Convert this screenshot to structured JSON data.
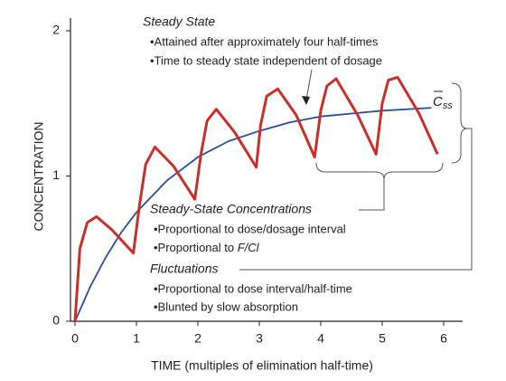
{
  "chart_data": {
    "type": "line",
    "x_label": "TIME (multiples of elimination half-time)",
    "y_label": "CONCENTRATION",
    "xlim": [
      0,
      6.3
    ],
    "ylim": [
      0,
      2.08
    ],
    "xticks": [
      0,
      1,
      2,
      3,
      4,
      5,
      6
    ],
    "yticks": [
      0,
      1,
      2
    ],
    "series": [
      {
        "color": "#c8302a",
        "x": [
          0,
          0.08,
          0.2,
          0.35,
          0.6,
          0.95,
          1.05,
          1.15,
          1.3,
          1.6,
          1.95,
          2.05,
          2.15,
          2.3,
          2.6,
          2.95,
          3.02,
          3.12,
          3.3,
          3.6,
          3.9,
          4.0,
          4.1,
          4.25,
          4.6,
          4.9,
          5.0,
          5.1,
          5.25,
          5.6,
          5.9
        ],
        "values": [
          0,
          0.5,
          0.68,
          0.72,
          0.63,
          0.47,
          0.8,
          1.08,
          1.2,
          1.07,
          0.84,
          1.15,
          1.38,
          1.46,
          1.3,
          1.06,
          1.35,
          1.55,
          1.6,
          1.42,
          1.13,
          1.45,
          1.62,
          1.67,
          1.42,
          1.15,
          1.5,
          1.66,
          1.68,
          1.43,
          1.15
        ]
      },
      {
        "color": "#2a4f9c",
        "x": [
          0,
          0.25,
          0.5,
          0.75,
          1,
          1.5,
          2,
          2.5,
          3,
          3.5,
          4,
          4.5,
          5,
          5.8
        ],
        "values": [
          0,
          0.24,
          0.44,
          0.61,
          0.75,
          0.97,
          1.13,
          1.24,
          1.31,
          1.37,
          1.41,
          1.43,
          1.45,
          1.47
        ]
      }
    ],
    "css_label": {
      "base": "C",
      "subscript": "ss"
    },
    "annotations": {
      "steady_state": {
        "title": "Steady State",
        "items": [
          "•Attained after approximately four half-times",
          "•Time to steady state independent of dosage"
        ]
      },
      "concentrations": {
        "title": "Steady-State Concentrations",
        "items": [
          "•Proportional to dose/dosage interval",
          [
            "•Proportional to ",
            "F/Cl"
          ]
        ]
      },
      "fluctuations": {
        "title": "Fluctuations",
        "items": [
          "•Proportional to dose interval/half-time",
          "•Blunted by slow absorption"
        ]
      }
    }
  }
}
